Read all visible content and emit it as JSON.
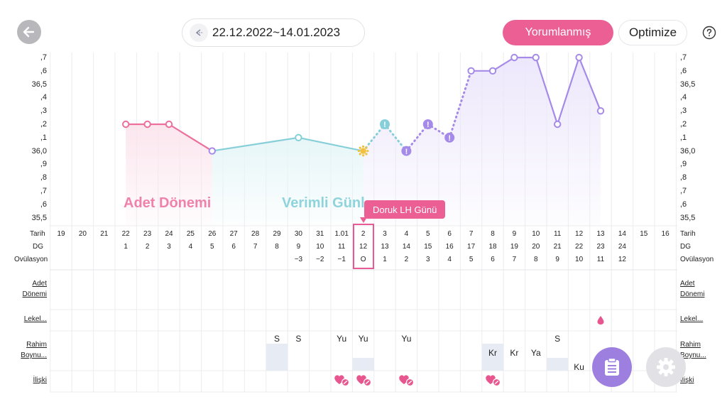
{
  "header": {
    "date_range": "22.12.2022~14.01.2023",
    "yorumlanmis_label": "Yorumlanmış",
    "optimize_label": "Optimize"
  },
  "scale": [
    ",7",
    ",6",
    "36,5",
    ",4",
    ",3",
    ",2",
    ",1",
    "36,0",
    ",9",
    ",8",
    ",7",
    ",6",
    "35,5"
  ],
  "rows": {
    "tarih": "Tarih",
    "dg": "DG",
    "ovulasyon": "Ovülasyon",
    "adet": [
      "Adet",
      "Dönemi"
    ],
    "lekelenme": "Lekel...",
    "rahim": [
      "Rahim",
      "Boynu..."
    ],
    "iliski": "İlişki"
  },
  "dates": [
    "19",
    "20",
    "21",
    "22",
    "23",
    "24",
    "25",
    "26",
    "27",
    "28",
    "29",
    "30",
    "31",
    "1.01",
    "2",
    "3",
    "4",
    "5",
    "6",
    "7",
    "8",
    "9",
    "10",
    "11",
    "12",
    "13",
    "14",
    "15",
    "16"
  ],
  "dg": [
    "",
    "",
    "",
    "1",
    "2",
    "3",
    "4",
    "5",
    "6",
    "7",
    "8",
    "9",
    "10",
    "11",
    "12",
    "13",
    "14",
    "15",
    "16",
    "17",
    "18",
    "19",
    "20",
    "21",
    "22",
    "23",
    "24",
    "",
    ""
  ],
  "ovulasyon": [
    "",
    "",
    "",
    "",
    "",
    "",
    "",
    "",
    "",
    "",
    "",
    "−3",
    "−2",
    "−1",
    "O",
    "1",
    "2",
    "3",
    "4",
    "5",
    "6",
    "7",
    "8",
    "9",
    "10",
    "11",
    "12",
    "",
    ""
  ],
  "phases": {
    "adet": "Adet Dönemi",
    "verimli": "Verimli Günl",
    "lh": "Doruk LH Günü"
  },
  "rahim_boynu": [
    {
      "col": 10,
      "text": "S",
      "shade": true
    },
    {
      "col": 11,
      "text": "S",
      "shade": false
    },
    {
      "col": 13,
      "text": "Yu",
      "shade": false
    },
    {
      "col": 14,
      "text": "Yu",
      "shade": true
    },
    {
      "col": 16,
      "text": "Yu",
      "shade": false
    },
    {
      "col": 20,
      "text": "Kr",
      "shade": true
    },
    {
      "col": 21,
      "text": "Kr",
      "shade": false
    },
    {
      "col": 22,
      "text": "Ya",
      "shade": false
    },
    {
      "col": 23,
      "text": "S",
      "shade": true
    },
    {
      "col": 24,
      "text": "Ku",
      "shade": false
    }
  ],
  "iliski_cols": [
    13,
    14,
    16,
    20
  ],
  "lekelenme_cols": [
    25
  ],
  "chart_data": {
    "type": "line",
    "ylabel": "",
    "ylim": [
      35.45,
      36.7
    ],
    "x": [
      "22",
      "23",
      "24",
      "26",
      "30",
      "2",
      "3",
      "4",
      "5",
      "6",
      "7",
      "8",
      "9",
      "10",
      "11",
      "12",
      "13"
    ],
    "values": [
      36.2,
      36.2,
      36.2,
      36.0,
      36.1,
      36.0,
      36.2,
      36.0,
      36.2,
      36.1,
      36.6,
      36.6,
      36.7,
      36.7,
      36.2,
      36.7,
      36.3
    ],
    "colors": {
      "adet": "#ec6f9c",
      "verimli": "#86cfd9",
      "luteal": "#a58ae8",
      "ovulation": "#f3c140"
    }
  }
}
